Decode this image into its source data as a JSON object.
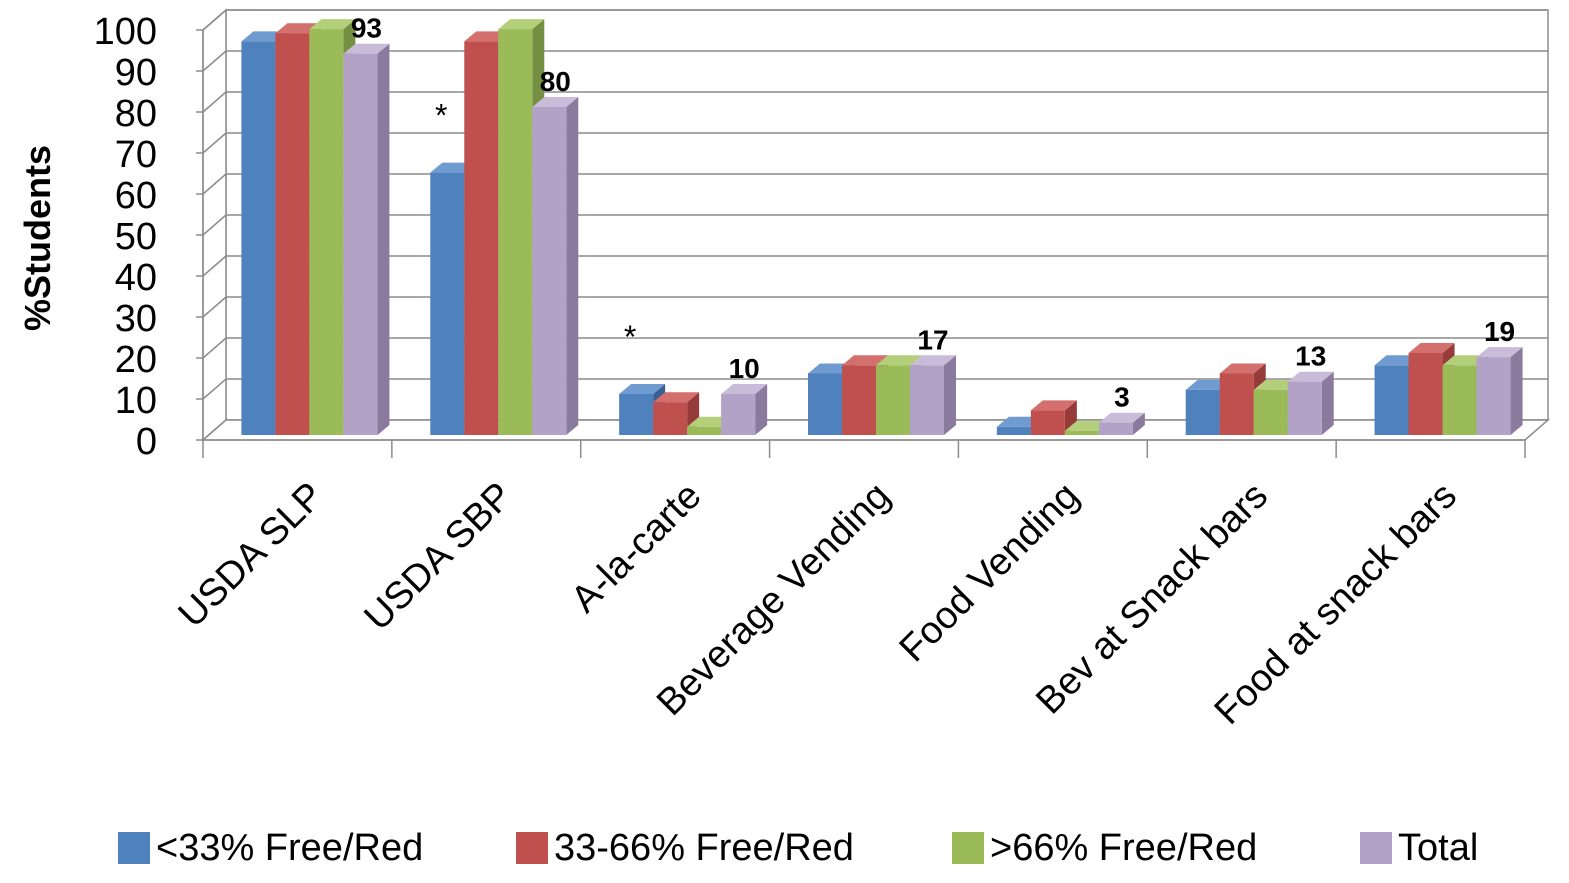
{
  "chart_data": {
    "type": "bar",
    "title": "",
    "xlabel": "",
    "ylabel": "%Students",
    "ylim": [
      0,
      100
    ],
    "yticks": [
      "0",
      "10",
      "20",
      "30",
      "40",
      "50",
      "60",
      "70",
      "80",
      "90",
      "100"
    ],
    "grid": true,
    "legend_position": "bottom",
    "style": "3d-clustered-column",
    "categories": [
      "USDA SLP",
      "USDA SBP",
      "A-la-carte",
      "Beverage Vending",
      "Food Vending",
      "Bev at Snack bars",
      "Food at snack bars"
    ],
    "series": [
      {
        "name": "<33% Free/Red",
        "color": "#4F81BD",
        "side_color": "#3A6094",
        "top_color": "#6F9BD1",
        "values": [
          96,
          64,
          10,
          15,
          2,
          11,
          17
        ]
      },
      {
        "name": "33-66% Free/Red",
        "color": "#C0504D",
        "side_color": "#953B39",
        "top_color": "#D36F6C",
        "values": [
          98,
          96,
          8,
          17,
          6,
          15,
          20
        ]
      },
      {
        "name": ">66% Free/Red",
        "color": "#9BBB59",
        "side_color": "#769043",
        "top_color": "#B3CF7A",
        "values": [
          99,
          99,
          2,
          17,
          1,
          11,
          17
        ]
      },
      {
        "name": "Total",
        "color": "#B3A2C7",
        "side_color": "#8A7A9E",
        "top_color": "#C9BCD8",
        "values": [
          93,
          80,
          10,
          17,
          3,
          13,
          19
        ]
      }
    ],
    "data_labels": [
      {
        "category": "USDA SLP",
        "series": "Total",
        "text": "93"
      },
      {
        "category": "USDA SBP",
        "series": "Total",
        "text": "80"
      },
      {
        "category": "A-la-carte",
        "series": "Total",
        "text": "10"
      },
      {
        "category": "Beverage Vending",
        "series": "Total",
        "text": "17"
      },
      {
        "category": "Food Vending",
        "series": "Total",
        "text": "3"
      },
      {
        "category": "Bev at Snack bars",
        "series": "Total",
        "text": "13"
      },
      {
        "category": "Food at snack bars",
        "series": "Total",
        "text": "19"
      }
    ],
    "annotations": [
      {
        "category": "USDA SBP",
        "series": "<33% Free/Red",
        "text": "*"
      },
      {
        "category": "A-la-carte",
        "series": "<33% Free/Red",
        "text": "*"
      }
    ]
  }
}
